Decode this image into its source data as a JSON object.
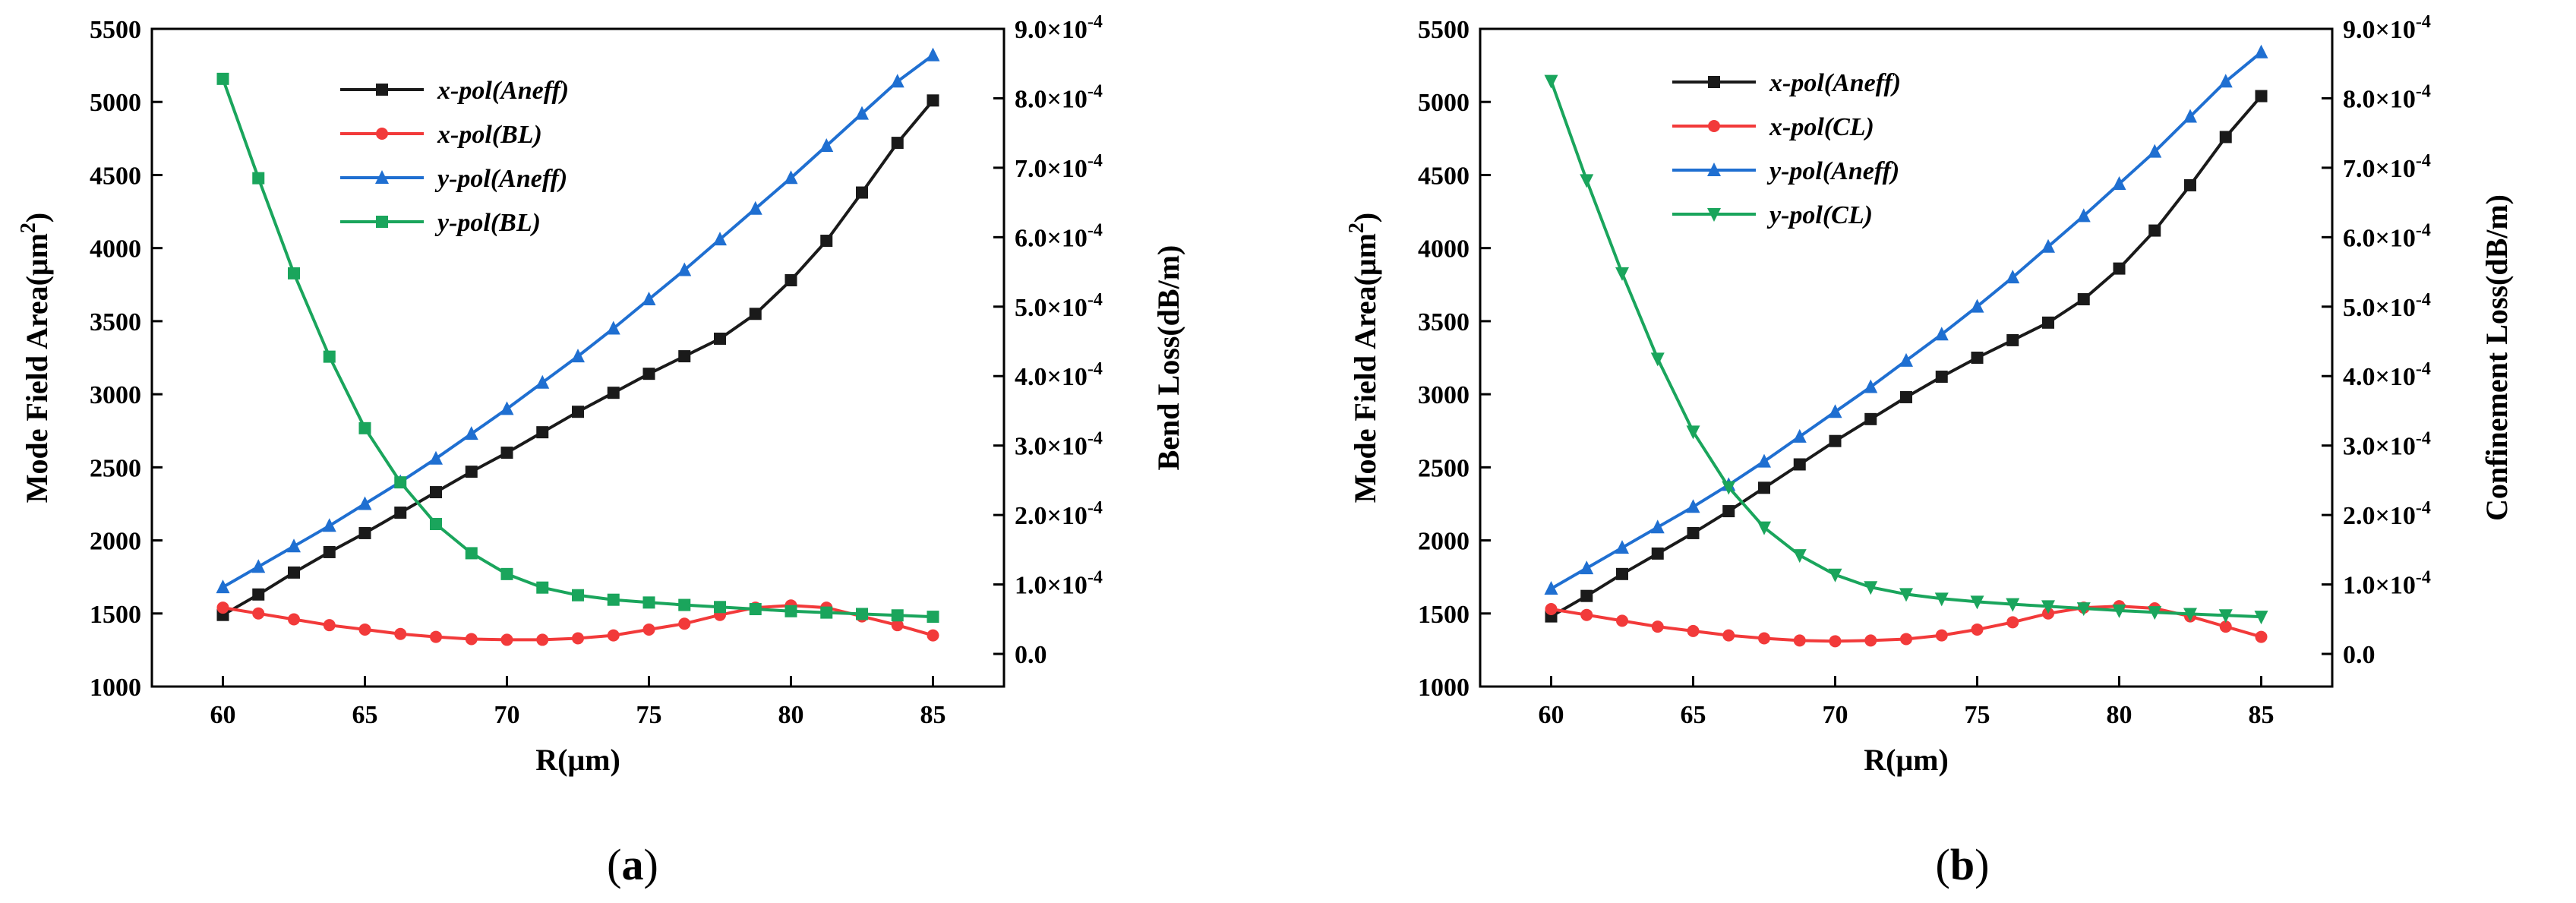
{
  "figure": {
    "panels": [
      {
        "letter": "a",
        "prefix": "(",
        "suffix": ")"
      },
      {
        "letter": "b",
        "prefix": "(",
        "suffix": ")"
      }
    ]
  },
  "chart_data": [
    {
      "type": "line",
      "panel": "(a)",
      "xlabel": "R(μm)",
      "ylabel_left": {
        "text": "Mode Field Area(μm",
        "sup": "2",
        "close": ")"
      },
      "ylabel_right": "Bend Loss(dB/m)",
      "xlim": [
        57.5,
        87.5
      ],
      "ylim_left": [
        1000,
        5500
      ],
      "ylim_right": [
        -4.7e-05,
        0.0009
      ],
      "xticks": [
        60,
        65,
        70,
        75,
        80,
        85
      ],
      "yticks_left": [
        1000,
        1500,
        2000,
        2500,
        3000,
        3500,
        4000,
        4500,
        5000,
        5500
      ],
      "yticks_right": [
        {
          "value": 0.0,
          "mant": "0.0",
          "exp": ""
        },
        {
          "value": 0.0001,
          "mant": "1.0×10",
          "exp": "-4"
        },
        {
          "value": 0.0002,
          "mant": "2.0×10",
          "exp": "-4"
        },
        {
          "value": 0.0003,
          "mant": "3.0×10",
          "exp": "-4"
        },
        {
          "value": 0.0004,
          "mant": "4.0×10",
          "exp": "-4"
        },
        {
          "value": 0.0005,
          "mant": "5.0×10",
          "exp": "-4"
        },
        {
          "value": 0.0006,
          "mant": "6.0×10",
          "exp": "-4"
        },
        {
          "value": 0.0007,
          "mant": "7.0×10",
          "exp": "-4"
        },
        {
          "value": 0.0008,
          "mant": "8.0×10",
          "exp": "-4"
        },
        {
          "value": 0.0009,
          "mant": "9.0×10",
          "exp": "-4"
        }
      ],
      "x": [
        60,
        61.25,
        62.5,
        63.75,
        65,
        66.25,
        67.5,
        68.75,
        70,
        71.25,
        72.5,
        73.75,
        75,
        76.25,
        77.5,
        78.75,
        80,
        81.25,
        82.5,
        83.75,
        85
      ],
      "legend_position": "upper-left",
      "series": [
        {
          "name": "x-pol(Aneff)",
          "axis": "left",
          "color": "#1a1a1a",
          "marker": "square",
          "values": [
            1490,
            1630,
            1780,
            1920,
            2050,
            2190,
            2330,
            2470,
            2600,
            2740,
            2880,
            3010,
            3140,
            3260,
            3380,
            3550,
            3780,
            4050,
            4380,
            4720,
            5010
          ]
        },
        {
          "name": "x-pol(BL)",
          "axis": "left",
          "color": "#f23a3a",
          "marker": "circle",
          "values": [
            1540,
            1500,
            1460,
            1420,
            1390,
            1360,
            1340,
            1325,
            1320,
            1320,
            1330,
            1350,
            1390,
            1430,
            1490,
            1540,
            1555,
            1540,
            1480,
            1420,
            1350
          ]
        },
        {
          "name": "y-pol(Aneff)",
          "axis": "left",
          "color": "#1f6fd1",
          "marker": "triangle-up",
          "values": [
            1680,
            1820,
            1960,
            2100,
            2250,
            2400,
            2560,
            2730,
            2900,
            3080,
            3260,
            3450,
            3650,
            3850,
            4060,
            4270,
            4480,
            4700,
            4920,
            5140,
            5320
          ]
        },
        {
          "name": "y-pol(BL)",
          "axis": "right",
          "color": "#1aa55c",
          "marker": "square",
          "values": [
            0.000828,
            0.000685,
            0.000548,
            0.000428,
            0.000325,
            0.000247,
            0.000187,
            0.000145,
            0.000115,
            9.55e-05,
            8.45e-05,
            7.8e-05,
            7.4e-05,
            7.05e-05,
            6.75e-05,
            6.45e-05,
            6.15e-05,
            5.95e-05,
            5.75e-05,
            5.55e-05,
            5.35e-05
          ]
        }
      ]
    },
    {
      "type": "line",
      "panel": "(b)",
      "xlabel": "R(μm)",
      "ylabel_left": {
        "text": "Mode Field Area(μm",
        "sup": "2",
        "close": ")"
      },
      "ylabel_right": "Confinement Loss(dB/m)",
      "xlim": [
        57.5,
        87.5
      ],
      "ylim_left": [
        1000,
        5500
      ],
      "ylim_right": [
        -4.7e-05,
        0.0009
      ],
      "xticks": [
        60,
        65,
        70,
        75,
        80,
        85
      ],
      "yticks_left": [
        1000,
        1500,
        2000,
        2500,
        3000,
        3500,
        4000,
        4500,
        5000,
        5500
      ],
      "yticks_right": [
        {
          "value": 0.0,
          "mant": "0.0",
          "exp": ""
        },
        {
          "value": 0.0001,
          "mant": "1.0×10",
          "exp": "-4"
        },
        {
          "value": 0.0002,
          "mant": "2.0×10",
          "exp": "-4"
        },
        {
          "value": 0.0003,
          "mant": "3.0×10",
          "exp": "-4"
        },
        {
          "value": 0.0004,
          "mant": "4.0×10",
          "exp": "-4"
        },
        {
          "value": 0.0005,
          "mant": "5.0×10",
          "exp": "-4"
        },
        {
          "value": 0.0006,
          "mant": "6.0×10",
          "exp": "-4"
        },
        {
          "value": 0.0007,
          "mant": "7.0×10",
          "exp": "-4"
        },
        {
          "value": 0.0008,
          "mant": "8.0×10",
          "exp": "-4"
        },
        {
          "value": 0.0009,
          "mant": "9.0×10",
          "exp": "-4"
        }
      ],
      "x": [
        60,
        61.25,
        62.5,
        63.75,
        65,
        66.25,
        67.5,
        68.75,
        70,
        71.25,
        72.5,
        73.75,
        75,
        76.25,
        77.5,
        78.75,
        80,
        81.25,
        82.5,
        83.75,
        85
      ],
      "legend_position": "upper-left",
      "series": [
        {
          "name": "x-pol(Aneff)",
          "axis": "left",
          "color": "#1a1a1a",
          "marker": "square",
          "values": [
            1480,
            1620,
            1770,
            1910,
            2050,
            2200,
            2360,
            2520,
            2680,
            2830,
            2980,
            3120,
            3250,
            3370,
            3490,
            3650,
            3860,
            4120,
            4430,
            4760,
            5040
          ]
        },
        {
          "name": "x-pol(CL)",
          "axis": "left",
          "color": "#f23a3a",
          "marker": "circle",
          "values": [
            1530,
            1490,
            1450,
            1410,
            1380,
            1350,
            1330,
            1315,
            1310,
            1315,
            1325,
            1350,
            1390,
            1440,
            1500,
            1540,
            1550,
            1535,
            1480,
            1410,
            1340
          ]
        },
        {
          "name": "y-pol(Aneff)",
          "axis": "left",
          "color": "#1f6fd1",
          "marker": "triangle-up",
          "values": [
            1670,
            1810,
            1950,
            2090,
            2230,
            2380,
            2540,
            2710,
            2880,
            3050,
            3230,
            3410,
            3600,
            3800,
            4010,
            4220,
            4440,
            4660,
            4900,
            5140,
            5340
          ]
        },
        {
          "name": "y-pol(CL)",
          "axis": "right",
          "color": "#1aa55c",
          "marker": "triangle-down",
          "values": [
            0.000825,
            0.000682,
            0.000548,
            0.000425,
            0.00032,
            0.00024,
            0.000182,
            0.000142,
            0.000114,
            9.6e-05,
            8.6e-05,
            7.95e-05,
            7.5e-05,
            7.15e-05,
            6.85e-05,
            6.55e-05,
            6.25e-05,
            6e-05,
            5.75e-05,
            5.55e-05,
            5.35e-05
          ]
        }
      ]
    }
  ]
}
